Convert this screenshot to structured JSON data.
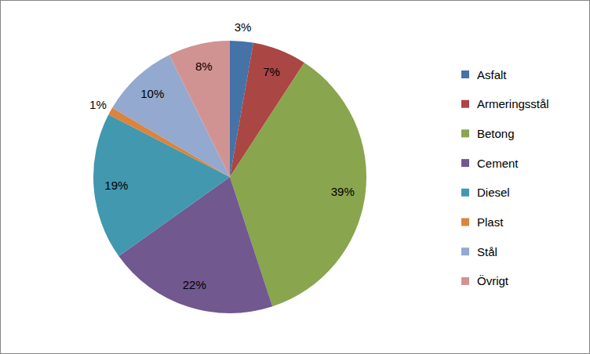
{
  "chart_data": {
    "type": "pie",
    "categories": [
      "Asfalt",
      "Armeringsstål",
      "Betong",
      "Cement",
      "Diesel",
      "Plast",
      "Stål",
      "Övrigt"
    ],
    "values": [
      3,
      7,
      39,
      22,
      19,
      1,
      10,
      8
    ],
    "value_labels": [
      "3%",
      "7%",
      "39%",
      "22%",
      "19%",
      "1%",
      "10%",
      "8%"
    ],
    "colors": [
      "#4572A7",
      "#AA4643",
      "#89A54E",
      "#71588F",
      "#4198AF",
      "#DB843D",
      "#93A9CF",
      "#D19392"
    ],
    "data_labels": true,
    "legend": "right"
  }
}
